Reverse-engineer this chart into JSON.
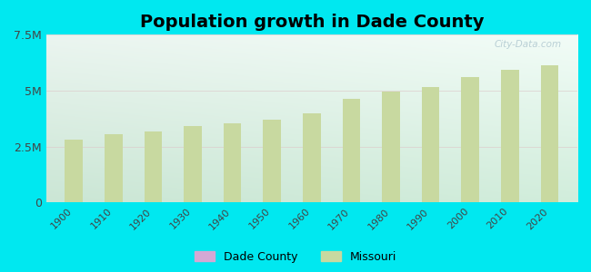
{
  "title": "Population growth in Dade County",
  "years": [
    1900,
    1910,
    1920,
    1930,
    1940,
    1950,
    1960,
    1970,
    1980,
    1990,
    2000,
    2010,
    2020
  ],
  "missouri_values": [
    2800000,
    3050000,
    3150000,
    3400000,
    3550000,
    3700000,
    3980000,
    4650000,
    4950000,
    5150000,
    5600000,
    5950000,
    6150000
  ],
  "bar_color": "#c8d9a0",
  "dade_color": "#d4a8d4",
  "background_outer": "#00e8f0",
  "ylim": [
    0,
    7500000
  ],
  "yticks": [
    0,
    2500000,
    5000000,
    7500000
  ],
  "ytick_labels": [
    "0",
    "2.5M",
    "5M",
    "7.5M"
  ],
  "watermark": "City-Data.com",
  "legend_dade": "Dade County",
  "legend_missouri": "Missouri",
  "bar_width": 4.5,
  "title_fontsize": 14
}
